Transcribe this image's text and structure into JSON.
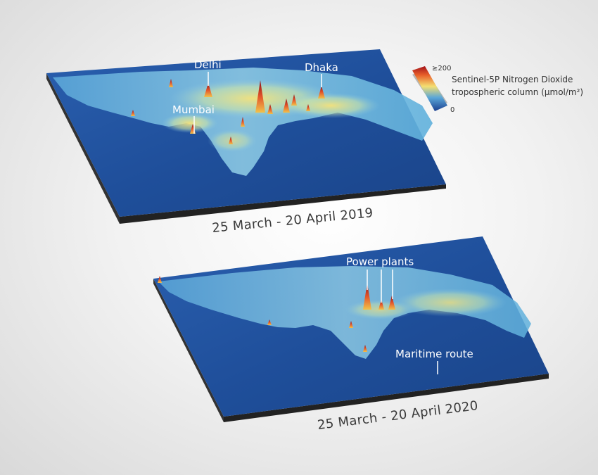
{
  "panels": {
    "top": {
      "date_label": "25 March - 20 April 2019",
      "callouts": {
        "delhi": "Delhi",
        "dhaka": "Dhaka",
        "mumbai": "Mumbai"
      }
    },
    "bottom": {
      "date_label": "25 March - 20 April 2020",
      "callouts": {
        "power_plants": "Power plants",
        "maritime_route": "Maritime route"
      }
    }
  },
  "legend": {
    "line1": "Sentinel-5P Nitrogen Dioxide",
    "line2": "tropospheric column (µmol/m²)",
    "max_label": "≥200",
    "min_label": "0"
  },
  "colors": {
    "ocean": "#1e4f9c",
    "land_low": "#3d86c9",
    "land_mid": "#9fd0e8",
    "no2_mid": "#f4df72",
    "no2_high": "#e8602a",
    "no2_max": "#a3121a"
  }
}
